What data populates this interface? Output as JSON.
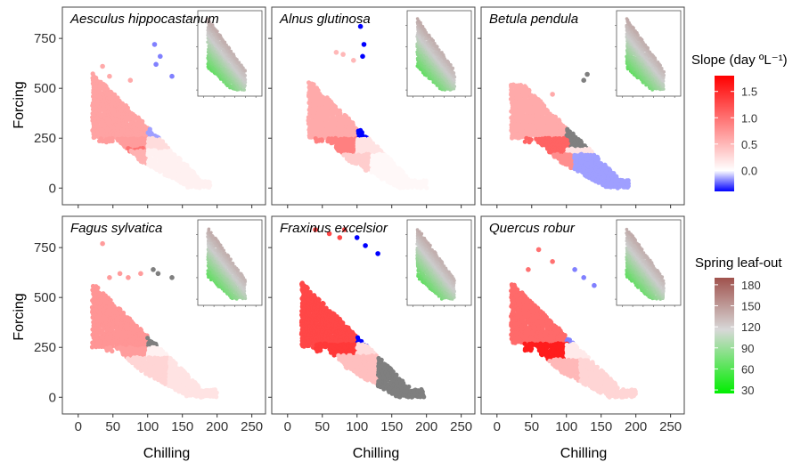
{
  "chart_data": {
    "type": "scatter",
    "description_layout": "2x3 facets",
    "xlabel": "Chilling",
    "ylabel": "Forcing",
    "xlim": [
      0,
      250
    ],
    "ylim": [
      0,
      850
    ],
    "xticks": [
      0,
      50,
      100,
      150,
      200,
      250
    ],
    "yticks": [
      0,
      250,
      500,
      750
    ],
    "x_tick_labels": [
      "0",
      "50",
      "100",
      "150",
      "200",
      "250"
    ],
    "y_tick_labels": [
      "0",
      "250",
      "500",
      "750"
    ],
    "legend_slope": {
      "title": "Slope (day ºL⁻¹)",
      "ticks": [
        1.5,
        1.0,
        0.5,
        0.0
      ],
      "tick_labels": [
        "1.5",
        "1.0",
        "0.5",
        "0.0"
      ],
      "range": [
        -0.4,
        1.8
      ],
      "colors": {
        "low": "#0000ff",
        "mid": "#ffffff",
        "high": "#ff0000"
      }
    },
    "legend_leafout": {
      "title": "Spring leaf-out",
      "ticks": [
        180,
        150,
        120,
        90,
        60,
        30
      ],
      "tick_labels": [
        "180",
        "150",
        "120",
        "90",
        "60",
        "30"
      ],
      "range": [
        25,
        190
      ],
      "colors": {
        "low": "#00ee00",
        "mid": "#cccccc",
        "high": "#a0524d"
      }
    },
    "panels": [
      {
        "species": "Aesculus hippocastanum",
        "regions": [
          {
            "x": [
              20,
              100
            ],
            "y": [
              250,
              620
            ],
            "slope": 0.65
          },
          {
            "x": [
              100,
              150
            ],
            "y": [
              250,
              620
            ],
            "slope": -0.15
          },
          {
            "x": [
              30,
              100
            ],
            "y": [
              200,
              250
            ],
            "slope": 0.7
          },
          {
            "x": [
              50,
              100
            ],
            "y": [
              170,
              200
            ],
            "slope": 1.0
          },
          {
            "x": [
              100,
              150
            ],
            "y": [
              190,
              250
            ],
            "slope": 0.25
          },
          {
            "x": [
              60,
              100
            ],
            "y": [
              0,
              190
            ],
            "slope": 0.55
          },
          {
            "x": [
              100,
              190
            ],
            "y": [
              0,
              190
            ],
            "slope": 0.1
          }
        ],
        "outliers": [
          {
            "x": 35,
            "y": 610,
            "slope": 0.6
          },
          {
            "x": 45,
            "y": 560,
            "slope": 0.6
          },
          {
            "x": 75,
            "y": 540,
            "slope": 0.6
          },
          {
            "x": 110,
            "y": 720,
            "slope": -0.2
          },
          {
            "x": 118,
            "y": 660,
            "slope": -0.2
          },
          {
            "x": 112,
            "y": 620,
            "slope": -0.2
          },
          {
            "x": 135,
            "y": 560,
            "slope": -0.2
          }
        ]
      },
      {
        "species": "Alnus glutinosa",
        "regions": [
          {
            "x": [
              30,
              100
            ],
            "y": [
              250,
              560
            ],
            "slope": 0.6
          },
          {
            "x": [
              100,
              170
            ],
            "y": [
              250,
              560
            ],
            "slope": -0.45
          },
          {
            "x": [
              40,
              100
            ],
            "y": [
              170,
              250
            ],
            "slope": 0.9
          },
          {
            "x": [
              100,
              160
            ],
            "y": [
              170,
              250
            ],
            "slope": 0.2
          },
          {
            "x": [
              50,
              120
            ],
            "y": [
              0,
              170
            ],
            "slope": 0.35
          },
          {
            "x": [
              120,
              200
            ],
            "y": [
              0,
              170
            ],
            "slope": 0.05
          }
        ],
        "outliers": [
          {
            "x": 70,
            "y": 680,
            "slope": 0.5
          },
          {
            "x": 80,
            "y": 670,
            "slope": 0.5
          },
          {
            "x": 95,
            "y": 640,
            "slope": 0.5
          },
          {
            "x": 105,
            "y": 810,
            "slope": -0.5
          },
          {
            "x": 110,
            "y": 720,
            "slope": -0.5
          },
          {
            "x": 108,
            "y": 660,
            "slope": -0.5
          }
        ]
      },
      {
        "species": "Betula pendula",
        "regions": [
          {
            "x": [
              20,
              100
            ],
            "y": [
              250,
              520
            ],
            "slope": 0.6
          },
          {
            "x": [
              100,
              160
            ],
            "y": [
              200,
              520
            ],
            "slope": "grey"
          },
          {
            "x": [
              40,
              100
            ],
            "y": [
              170,
              250
            ],
            "slope": 1.1
          },
          {
            "x": [
              100,
              165
            ],
            "y": [
              170,
              200
            ],
            "slope": 0.2
          },
          {
            "x": [
              55,
              110
            ],
            "y": [
              0,
              170
            ],
            "slope": 0.8
          },
          {
            "x": [
              110,
              190
            ],
            "y": [
              0,
              170
            ],
            "slope": -0.15
          }
        ],
        "outliers": [
          {
            "x": 130,
            "y": 570,
            "slope": "grey"
          },
          {
            "x": 125,
            "y": 540,
            "slope": "grey"
          },
          {
            "x": 40,
            "y": 450,
            "slope": 0.6
          },
          {
            "x": 80,
            "y": 470,
            "slope": 0.6
          }
        ]
      },
      {
        "species": "Fagus sylvatica",
        "regions": [
          {
            "x": [
              20,
              100
            ],
            "y": [
              250,
              560
            ],
            "slope": 0.75
          },
          {
            "x": [
              100,
              155
            ],
            "y": [
              250,
              560
            ],
            "slope": "grey"
          },
          {
            "x": [
              40,
              100
            ],
            "y": [
              200,
              250
            ],
            "slope": 0.7
          },
          {
            "x": [
              100,
              160
            ],
            "y": [
              200,
              250
            ],
            "slope": 0.1
          },
          {
            "x": [
              50,
              130
            ],
            "y": [
              0,
              200
            ],
            "slope": 0.3
          },
          {
            "x": [
              130,
              200
            ],
            "y": [
              0,
              200
            ],
            "slope": 0.2
          }
        ],
        "outliers": [
          {
            "x": 35,
            "y": 770,
            "slope": 0.7
          },
          {
            "x": 45,
            "y": 600,
            "slope": 0.7
          },
          {
            "x": 60,
            "y": 620,
            "slope": 0.7
          },
          {
            "x": 72,
            "y": 600,
            "slope": 0.7
          },
          {
            "x": 90,
            "y": 620,
            "slope": 0.7
          },
          {
            "x": 108,
            "y": 640,
            "slope": "grey"
          },
          {
            "x": 115,
            "y": 620,
            "slope": "grey"
          },
          {
            "x": 135,
            "y": 600,
            "slope": "grey"
          }
        ]
      },
      {
        "species": "Fraxinus excelsior",
        "regions": [
          {
            "x": [
              20,
              100
            ],
            "y": [
              250,
              760
            ],
            "slope": 1.3
          },
          {
            "x": [
              100,
              150
            ],
            "y": [
              250,
              620
            ],
            "slope": -0.45
          },
          {
            "x": [
              40,
              100
            ],
            "y": [
              210,
              270
            ],
            "slope": 1.4
          },
          {
            "x": [
              100,
              150
            ],
            "y": [
              210,
              270
            ],
            "slope": 0.25
          },
          {
            "x": [
              50,
              130
            ],
            "y": [
              0,
              210
            ],
            "slope": 0.45
          },
          {
            "x": [
              130,
              195
            ],
            "y": [
              0,
              210
            ],
            "slope": "grey"
          }
        ],
        "outliers": [
          {
            "x": 40,
            "y": 840,
            "slope": 1.3
          },
          {
            "x": 60,
            "y": 820,
            "slope": 1.3
          },
          {
            "x": 82,
            "y": 840,
            "slope": 1.3
          },
          {
            "x": 75,
            "y": 800,
            "slope": 1.3
          },
          {
            "x": 100,
            "y": 800,
            "slope": -0.5
          },
          {
            "x": 112,
            "y": 760,
            "slope": -0.5
          },
          {
            "x": 130,
            "y": 720,
            "slope": -0.5
          }
        ]
      },
      {
        "species": "Quercus robur",
        "regions": [
          {
            "x": [
              20,
              100
            ],
            "y": [
              270,
              700
            ],
            "slope": 1.05
          },
          {
            "x": [
              100,
              155
            ],
            "y": [
              270,
              560
            ],
            "slope": -0.2
          },
          {
            "x": [
              40,
              100
            ],
            "y": [
              190,
              270
            ],
            "slope": 1.6
          },
          {
            "x": [
              100,
              155
            ],
            "y": [
              190,
              270
            ],
            "slope": 0.15
          },
          {
            "x": [
              50,
              120
            ],
            "y": [
              0,
              190
            ],
            "slope": 0.5
          },
          {
            "x": [
              120,
              200
            ],
            "y": [
              0,
              190
            ],
            "slope": 0.3
          }
        ],
        "outliers": [
          {
            "x": 60,
            "y": 740,
            "slope": 1.0
          },
          {
            "x": 45,
            "y": 640,
            "slope": 1.0
          },
          {
            "x": 80,
            "y": 680,
            "slope": 1.0
          },
          {
            "x": 112,
            "y": 640,
            "slope": -0.2
          },
          {
            "x": 125,
            "y": 600,
            "slope": -0.2
          },
          {
            "x": 140,
            "y": 560,
            "slope": -0.2
          }
        ]
      }
    ],
    "inset": {
      "description": "same chilling-forcing scatter coloured by spring leaf-out day",
      "leafout_range": [
        40,
        185
      ]
    }
  }
}
